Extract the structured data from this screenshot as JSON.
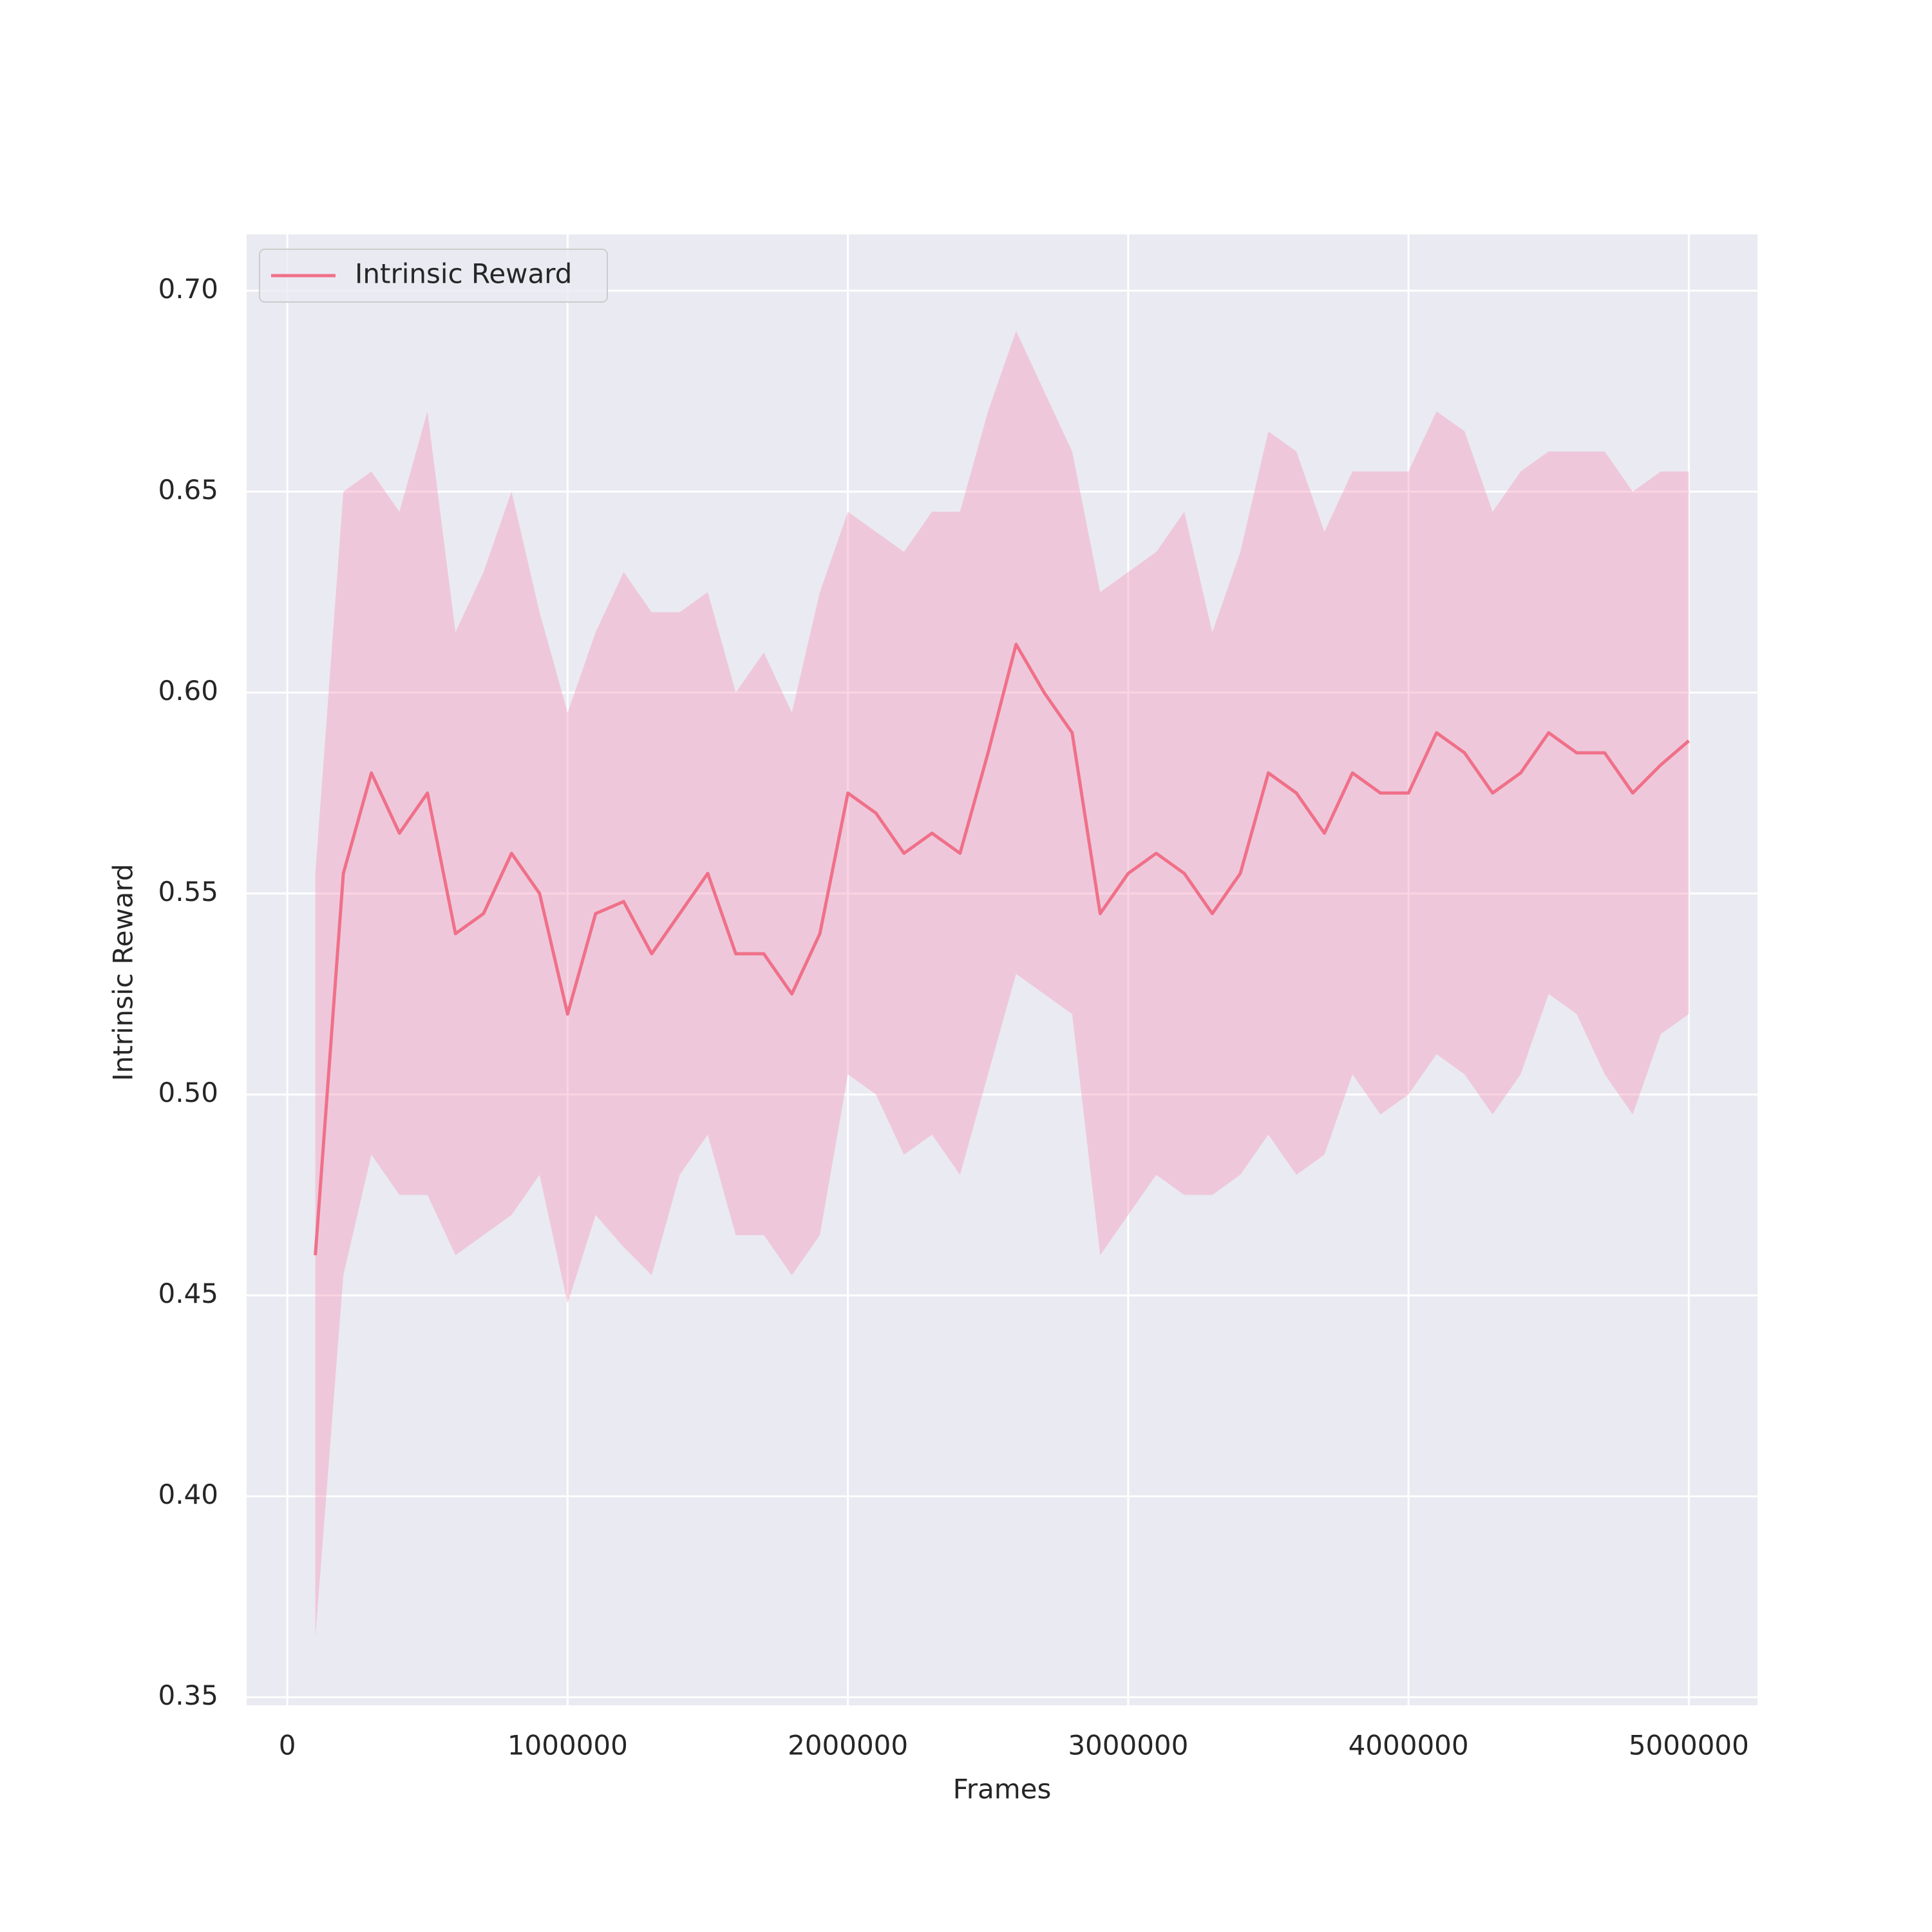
{
  "chart_data": {
    "type": "line",
    "xlabel": "Frames",
    "ylabel": "Intrinsic Reward",
    "x": [
      100000,
      200000,
      300000,
      400000,
      500000,
      600000,
      700000,
      800000,
      900000,
      1000000,
      1100000,
      1200000,
      1300000,
      1400000,
      1500000,
      1600000,
      1700000,
      1800000,
      1900000,
      2000000,
      2100000,
      2200000,
      2300000,
      2400000,
      2500000,
      2600000,
      2700000,
      2800000,
      2900000,
      3000000,
      3100000,
      3200000,
      3300000,
      3400000,
      3500000,
      3600000,
      3700000,
      3800000,
      3900000,
      4000000,
      4100000,
      4200000,
      4300000,
      4400000,
      4500000,
      4600000,
      4700000,
      4800000,
      4900000,
      5000000
    ],
    "series": [
      {
        "name": "Intrinsic Reward",
        "color": "#f07089",
        "band_color": "#f4a0bc",
        "values": [
          0.46,
          0.555,
          0.58,
          0.565,
          0.575,
          0.54,
          0.545,
          0.56,
          0.55,
          0.52,
          0.545,
          0.548,
          0.535,
          0.545,
          0.555,
          0.535,
          0.535,
          0.525,
          0.54,
          0.575,
          0.57,
          0.56,
          0.565,
          0.56,
          0.585,
          0.612,
          0.6,
          0.59,
          0.545,
          0.555,
          0.56,
          0.555,
          0.545,
          0.555,
          0.58,
          0.575,
          0.565,
          0.58,
          0.575,
          0.575,
          0.59,
          0.585,
          0.575,
          0.58,
          0.59,
          0.585,
          0.585,
          0.575,
          0.582,
          0.588
        ],
        "upper": [
          0.555,
          0.65,
          0.655,
          0.645,
          0.67,
          0.615,
          0.63,
          0.65,
          0.62,
          0.595,
          0.615,
          0.63,
          0.62,
          0.62,
          0.625,
          0.6,
          0.61,
          0.595,
          0.625,
          0.645,
          0.64,
          0.635,
          0.645,
          0.645,
          0.67,
          0.69,
          0.675,
          0.66,
          0.625,
          0.63,
          0.635,
          0.645,
          0.615,
          0.635,
          0.665,
          0.66,
          0.64,
          0.655,
          0.655,
          0.655,
          0.67,
          0.665,
          0.645,
          0.655,
          0.66,
          0.66,
          0.66,
          0.65,
          0.655,
          0.655
        ],
        "lower": [
          0.365,
          0.455,
          0.485,
          0.475,
          0.475,
          0.46,
          0.465,
          0.47,
          0.48,
          0.448,
          0.47,
          0.462,
          0.455,
          0.48,
          0.49,
          0.465,
          0.465,
          0.455,
          0.465,
          0.505,
          0.5,
          0.485,
          0.49,
          0.48,
          0.505,
          0.53,
          0.525,
          0.52,
          0.46,
          0.47,
          0.48,
          0.475,
          0.475,
          0.48,
          0.49,
          0.48,
          0.485,
          0.505,
          0.495,
          0.5,
          0.51,
          0.505,
          0.495,
          0.505,
          0.525,
          0.52,
          0.505,
          0.495,
          0.515,
          0.52
        ]
      }
    ],
    "xlim": [
      -145000,
      5245000
    ],
    "ylim": [
      0.348,
      0.714
    ],
    "xticks": [
      0,
      1000000,
      2000000,
      3000000,
      4000000,
      5000000
    ],
    "yticks": [
      0.35,
      {
        "value": 0.4,
        "label": "0.40"
      },
      0.45,
      {
        "value": 0.5,
        "label": "0.50"
      },
      0.55,
      {
        "value": 0.6,
        "label": "0.60"
      },
      0.65,
      {
        "value": 0.7,
        "label": "0.70"
      }
    ],
    "grid": true,
    "legend": "upper left"
  }
}
